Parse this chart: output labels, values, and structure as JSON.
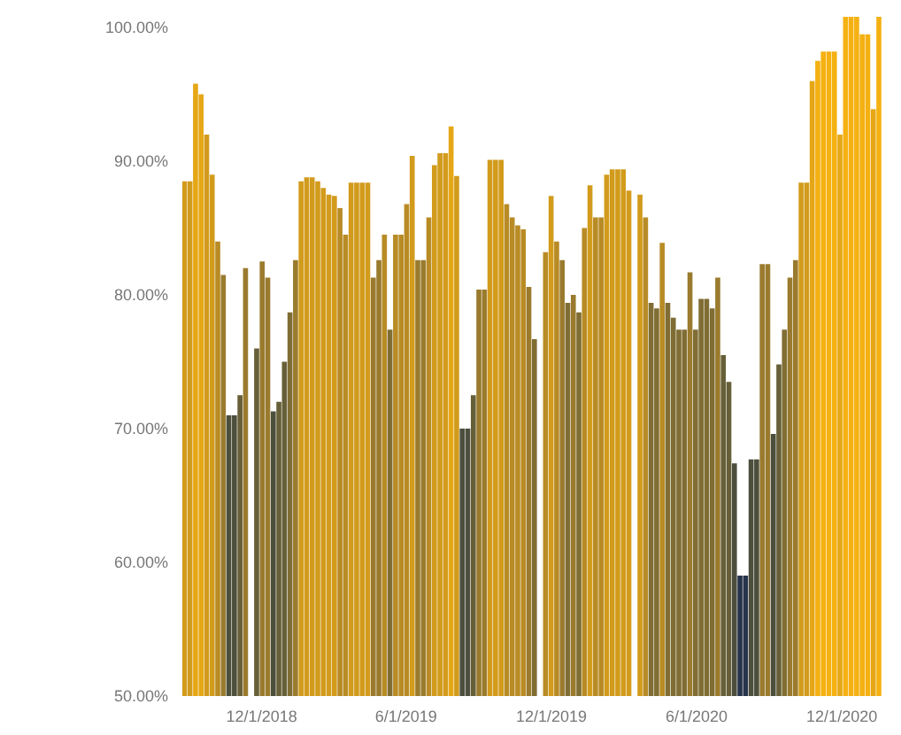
{
  "chart_data": {
    "type": "bar",
    "x": [
      "2018-08-26",
      "2018-09-02",
      "2018-09-09",
      "2018-09-16",
      "2018-09-23",
      "2018-09-30",
      "2018-10-07",
      "2018-10-14",
      "2018-10-21",
      "2018-10-28",
      "2018-11-04",
      "2018-11-11",
      "2018-11-18",
      "2018-11-25",
      "2018-12-02",
      "2018-12-09",
      "2018-12-16",
      "2018-12-23",
      "2018-12-30",
      "2019-01-06",
      "2019-01-13",
      "2019-01-20",
      "2019-01-27",
      "2019-02-03",
      "2019-02-10",
      "2019-02-17",
      "2019-02-24",
      "2019-03-03",
      "2019-03-10",
      "2019-03-17",
      "2019-03-24",
      "2019-03-31",
      "2019-04-07",
      "2019-04-14",
      "2019-04-21",
      "2019-04-28",
      "2019-05-05",
      "2019-05-12",
      "2019-05-19",
      "2019-05-26",
      "2019-06-02",
      "2019-06-09",
      "2019-06-16",
      "2019-06-23",
      "2019-06-30",
      "2019-07-07",
      "2019-07-14",
      "2019-07-21",
      "2019-07-28",
      "2019-08-04",
      "2019-08-11",
      "2019-08-18",
      "2019-08-25",
      "2019-09-01",
      "2019-09-08",
      "2019-09-15",
      "2019-09-22",
      "2019-09-29",
      "2019-10-06",
      "2019-10-13",
      "2019-10-20",
      "2019-10-27",
      "2019-11-03",
      "2019-11-10",
      "2019-11-17",
      "2019-11-24",
      "2019-12-01",
      "2019-12-08",
      "2019-12-15",
      "2019-12-22",
      "2019-12-29",
      "2020-01-05",
      "2020-01-12",
      "2020-01-19",
      "2020-01-26",
      "2020-02-02",
      "2020-02-09",
      "2020-02-16",
      "2020-02-23",
      "2020-03-01",
      "2020-03-08",
      "2020-03-15",
      "2020-03-22",
      "2020-03-29",
      "2020-04-05",
      "2020-04-12",
      "2020-04-19",
      "2020-04-26",
      "2020-05-03",
      "2020-05-10",
      "2020-05-17",
      "2020-05-24",
      "2020-05-31",
      "2020-06-07",
      "2020-06-14",
      "2020-06-21",
      "2020-06-28",
      "2020-07-05",
      "2020-07-12",
      "2020-07-19",
      "2020-07-26",
      "2020-08-02",
      "2020-08-09",
      "2020-08-16",
      "2020-08-23",
      "2020-08-30",
      "2020-09-06",
      "2020-09-13",
      "2020-09-20",
      "2020-09-27",
      "2020-10-04",
      "2020-10-11",
      "2020-10-18",
      "2020-10-25",
      "2020-11-01",
      "2020-11-08",
      "2020-11-15",
      "2020-11-22",
      "2020-11-29",
      "2020-12-06",
      "2020-12-13",
      "2020-12-20",
      "2020-12-27",
      "2021-01-03",
      "2021-01-10",
      "2021-01-17"
    ],
    "values": [
      88.5,
      88.5,
      95.8,
      95,
      92,
      89,
      84,
      81.5,
      71,
      71,
      72.5,
      82,
      null,
      76,
      82.5,
      81.3,
      71.3,
      72,
      75,
      78.7,
      82.6,
      88.5,
      88.8,
      88.8,
      88.5,
      88,
      87.5,
      87.4,
      86.5,
      84.5,
      88.4,
      88.4,
      88.4,
      88.4,
      81.3,
      82.6,
      84.5,
      77.4,
      84.5,
      84.5,
      86.8,
      90.4,
      82.6,
      82.6,
      85.8,
      89.7,
      90.6,
      90.6,
      92.6,
      88.9,
      70,
      70,
      72.5,
      80.4,
      80.4,
      90.1,
      90.1,
      90.1,
      86.8,
      85.8,
      85.2,
      84.9,
      80.6,
      76.7,
      null,
      83.2,
      87.4,
      84,
      82.6,
      79.4,
      80,
      78.7,
      85,
      88.2,
      85.8,
      85.8,
      89,
      89.4,
      89.4,
      89.4,
      87.8,
      null,
      87.5,
      85.8,
      79.4,
      79,
      83.9,
      79.4,
      78.3,
      77.4,
      77.4,
      81.7,
      77.4,
      79.7,
      79.7,
      79,
      81.3,
      75.5,
      73.5,
      67.4,
      59,
      59,
      67.7,
      67.7,
      82.3,
      82.3,
      69.6,
      74.8,
      77.4,
      81.3,
      82.6,
      88.4,
      88.4,
      96,
      97.5,
      98.2,
      98.2,
      98.2,
      92,
      100.8,
      100.8,
      100.8,
      99.5,
      99.5,
      93.9,
      100.8
    ],
    "colors": [
      "#d29b1c",
      "#d29b1c",
      "#e6a716",
      "#e6a716",
      "#d29b1c",
      "#d29b1c",
      "#b88b25",
      "#9a7b2e",
      "#4d4f3d",
      "#4d4f3d",
      "#665f38",
      "#9a7b2e",
      null,
      "#665f38",
      "#9a7b2e",
      "#9a7b2e",
      "#4d4f3d",
      "#665f38",
      "#665f38",
      "#7f6d33",
      "#9a7b2e",
      "#d29b1c",
      "#d29b1c",
      "#d29b1c",
      "#d29b1c",
      "#d29b1c",
      "#d29b1c",
      "#d29b1c",
      "#b88b25",
      "#b88b25",
      "#d29b1c",
      "#d29b1c",
      "#d29b1c",
      "#d29b1c",
      "#9a7b2e",
      "#9a7b2e",
      "#b88b25",
      "#7f6d33",
      "#b88b25",
      "#b88b25",
      "#b88b25",
      "#d29b1c",
      "#9a7b2e",
      "#9a7b2e",
      "#b88b25",
      "#d29b1c",
      "#d29b1c",
      "#d29b1c",
      "#e6a716",
      "#d29b1c",
      "#4d4f3d",
      "#4d4f3d",
      "#665f38",
      "#9a7b2e",
      "#9a7b2e",
      "#d29b1c",
      "#d29b1c",
      "#d29b1c",
      "#b88b25",
      "#b88b25",
      "#b88b25",
      "#b88b25",
      "#9a7b2e",
      "#7f6d33",
      null,
      "#b88b25",
      "#d29b1c",
      "#b88b25",
      "#9a7b2e",
      "#7f6d33",
      "#9a7b2e",
      "#7f6d33",
      "#b88b25",
      "#d29b1c",
      "#b88b25",
      "#b88b25",
      "#d29b1c",
      "#d29b1c",
      "#d29b1c",
      "#d29b1c",
      "#d29b1c",
      null,
      "#d29b1c",
      "#b88b25",
      "#7f6d33",
      "#7f6d33",
      "#b88b25",
      "#7f6d33",
      "#7f6d33",
      "#7f6d33",
      "#7f6d33",
      "#9a7b2e",
      "#7f6d33",
      "#7f6d33",
      "#7f6d33",
      "#7f6d33",
      "#9a7b2e",
      "#665f38",
      "#665f38",
      "#4d4f3d",
      "#26334a",
      "#26334a",
      "#4d4f3d",
      "#4d4f3d",
      "#9a7b2e",
      "#9a7b2e",
      "#4d4f3d",
      "#665f38",
      "#7f6d33",
      "#9a7b2e",
      "#9a7b2e",
      "#d29b1c",
      "#d29b1c",
      "#e6a716",
      "#f5b111",
      "#f5b111",
      "#f5b111",
      "#f5b111",
      "#e6a716",
      "#f5b111",
      "#f5b111",
      "#f5b111",
      "#f5b111",
      "#f5b111",
      "#e6a716",
      "#f5b111"
    ],
    "xlim": [
      "2018-08-23",
      "2021-01-20"
    ],
    "xticks": [
      {
        "value": "2018-12-01",
        "label": "12/1/2018"
      },
      {
        "value": "2019-06-01",
        "label": "6/1/2019"
      },
      {
        "value": "2019-12-01",
        "label": "12/1/2019"
      },
      {
        "value": "2020-06-01",
        "label": "6/1/2020"
      },
      {
        "value": "2020-12-01",
        "label": "12/1/2020"
      }
    ],
    "ylim": [
      50,
      101
    ],
    "yticks": [
      {
        "value": 50,
        "label": "50.00%"
      },
      {
        "value": 60,
        "label": "60.00%"
      },
      {
        "value": 70,
        "label": "70.00%"
      },
      {
        "value": 80,
        "label": "80.00%"
      },
      {
        "value": 90,
        "label": "90.00%"
      },
      {
        "value": 100,
        "label": "100.00%"
      }
    ],
    "grid": false,
    "legend": false
  }
}
